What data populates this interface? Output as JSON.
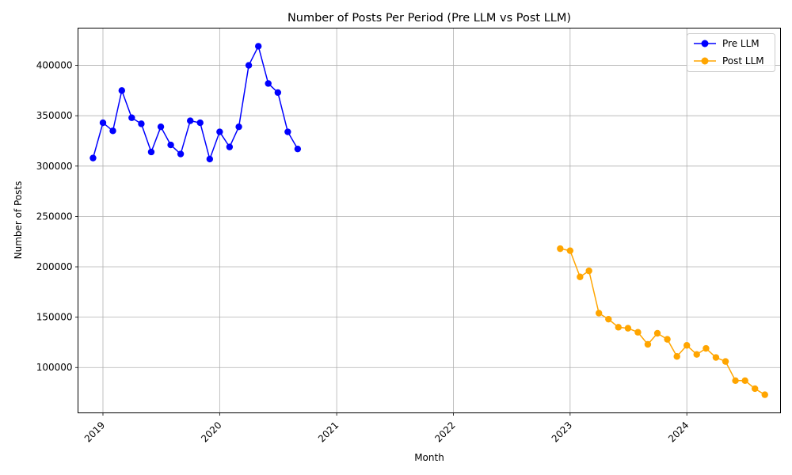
{
  "chart_data": {
    "type": "line",
    "title": "Number of Posts Per Period (Pre LLM vs Post LLM)",
    "xlabel": "Month",
    "ylabel": "Number of Posts",
    "xlim": [
      "2018-10-15",
      "2024-10-20"
    ],
    "ylim": [
      55000,
      437000
    ],
    "x_ticks": [
      {
        "date": "2019-01-01",
        "label": "2019"
      },
      {
        "date": "2020-01-01",
        "label": "2020"
      },
      {
        "date": "2021-01-01",
        "label": "2021"
      },
      {
        "date": "2022-01-01",
        "label": "2022"
      },
      {
        "date": "2023-01-01",
        "label": "2023"
      },
      {
        "date": "2024-01-01",
        "label": "2024"
      }
    ],
    "y_ticks": [
      100000,
      150000,
      200000,
      250000,
      300000,
      350000,
      400000
    ],
    "grid": true,
    "legend_position": "top-right",
    "series": [
      {
        "name": "Pre LLM",
        "color": "#0000ff",
        "points": [
          {
            "x": "2018-12",
            "y": 308000
          },
          {
            "x": "2019-01",
            "y": 343000
          },
          {
            "x": "2019-02",
            "y": 335000
          },
          {
            "x": "2019-03",
            "y": 375000
          },
          {
            "x": "2019-04",
            "y": 348000
          },
          {
            "x": "2019-05",
            "y": 342000
          },
          {
            "x": "2019-06",
            "y": 314000
          },
          {
            "x": "2019-07",
            "y": 339000
          },
          {
            "x": "2019-08",
            "y": 321000
          },
          {
            "x": "2019-09",
            "y": 312000
          },
          {
            "x": "2019-10",
            "y": 345000
          },
          {
            "x": "2019-11",
            "y": 343000
          },
          {
            "x": "2019-12",
            "y": 307000
          },
          {
            "x": "2020-01",
            "y": 334000
          },
          {
            "x": "2020-02",
            "y": 319000
          },
          {
            "x": "2020-03",
            "y": 339000
          },
          {
            "x": "2020-04",
            "y": 400000
          },
          {
            "x": "2020-05",
            "y": 419000
          },
          {
            "x": "2020-06",
            "y": 382000
          },
          {
            "x": "2020-07",
            "y": 373000
          },
          {
            "x": "2020-08",
            "y": 334000
          },
          {
            "x": "2020-09",
            "y": 317000
          }
        ]
      },
      {
        "name": "Post LLM",
        "color": "#ffa500",
        "points": [
          {
            "x": "2022-12",
            "y": 218000
          },
          {
            "x": "2023-01",
            "y": 216000
          },
          {
            "x": "2023-02",
            "y": 190000
          },
          {
            "x": "2023-03",
            "y": 196000
          },
          {
            "x": "2023-04",
            "y": 154000
          },
          {
            "x": "2023-05",
            "y": 148000
          },
          {
            "x": "2023-06",
            "y": 140000
          },
          {
            "x": "2023-07",
            "y": 139000
          },
          {
            "x": "2023-08",
            "y": 135000
          },
          {
            "x": "2023-09",
            "y": 123000
          },
          {
            "x": "2023-10",
            "y": 134000
          },
          {
            "x": "2023-11",
            "y": 128000
          },
          {
            "x": "2023-12",
            "y": 111000
          },
          {
            "x": "2024-01",
            "y": 122000
          },
          {
            "x": "2024-02",
            "y": 113000
          },
          {
            "x": "2024-03",
            "y": 119000
          },
          {
            "x": "2024-04",
            "y": 110000
          },
          {
            "x": "2024-05",
            "y": 106000
          },
          {
            "x": "2024-06",
            "y": 87000
          },
          {
            "x": "2024-07",
            "y": 87000
          },
          {
            "x": "2024-08",
            "y": 79000
          },
          {
            "x": "2024-09",
            "y": 73000
          }
        ]
      }
    ]
  }
}
